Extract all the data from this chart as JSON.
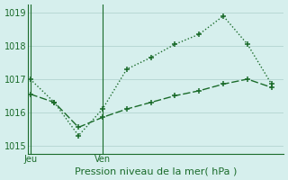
{
  "xlabel": "Pression niveau de la mer( hPa )",
  "ylim": [
    1014.75,
    1019.25
  ],
  "yticks": [
    1015,
    1016,
    1017,
    1018,
    1019
  ],
  "bg_color": "#d6efed",
  "grid_color": "#b8d8d4",
  "line_color": "#1a6b2a",
  "line1_x": [
    0,
    1,
    2,
    3,
    4,
    5,
    6,
    7,
    8,
    9,
    10
  ],
  "line1_y": [
    1017.0,
    1016.3,
    1015.3,
    1016.1,
    1017.3,
    1017.65,
    1018.05,
    1018.35,
    1018.9,
    1018.05,
    1016.85
  ],
  "line2_x": [
    0,
    1,
    2,
    3,
    4,
    5,
    6,
    7,
    8,
    9,
    10
  ],
  "line2_y": [
    1016.55,
    1016.3,
    1015.55,
    1015.85,
    1016.1,
    1016.3,
    1016.5,
    1016.65,
    1016.85,
    1017.0,
    1016.75
  ],
  "jeu_x": 0,
  "ven_x": 3,
  "xlim": [
    -0.1,
    10.5
  ],
  "marker": "+",
  "markersize": 4,
  "linewidth": 1.0,
  "xlabel_fontsize": 8,
  "tick_fontsize": 7
}
